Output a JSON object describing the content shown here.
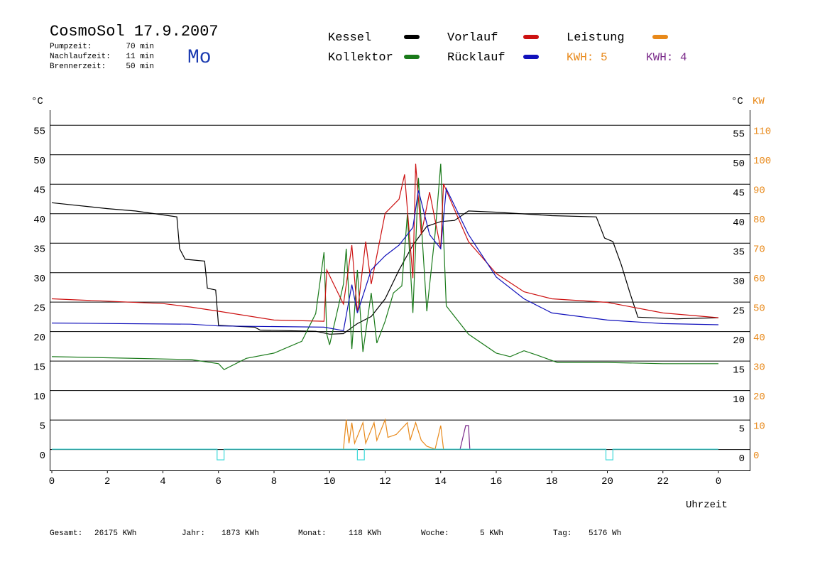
{
  "chart_data": {
    "type": "line",
    "title": "CosmoSol 17.9.2007",
    "day": "Mo",
    "info": [
      [
        "Pumpzeit:",
        "70 min"
      ],
      [
        "Nachlaufzeit:",
        "11 min"
      ],
      [
        "Brennerzeit:",
        "50 min"
      ]
    ],
    "y_label": "°C",
    "y2_label": "KW",
    "x_label": "Uhrzeit",
    "kwh_labels": [
      {
        "text": "KWH: 5",
        "color": "#e8891a"
      },
      {
        "text": "KWH: 4",
        "color": "#7a2a8a"
      }
    ],
    "footer": [
      [
        "Gesamt:",
        "26175 KWh"
      ],
      [
        "Jahr:",
        "1873 KWh"
      ],
      [
        "Monat:",
        "118 KWh"
      ],
      [
        "Woche:",
        "5 KWh"
      ],
      [
        "Tag:",
        "5176 Wh"
      ]
    ],
    "xlim": [
      0,
      24
    ],
    "xticks": [
      0,
      2,
      4,
      6,
      8,
      10,
      12,
      14,
      16,
      18,
      20,
      22,
      {
        "value": 24,
        "label": "0"
      }
    ],
    "ylim": [
      -3.6,
      57.5
    ],
    "yticks": [
      0,
      5,
      10,
      15,
      20,
      25,
      30,
      35,
      40,
      45,
      50,
      55
    ],
    "y2lim": [
      -7.2,
      115
    ],
    "y2ticks": [
      0,
      10,
      20,
      30,
      40,
      50,
      60,
      70,
      80,
      90,
      100,
      110
    ],
    "grid": true,
    "series": [
      {
        "name": "Kessel",
        "color": "#000000",
        "x": [
          0,
          2,
          3,
          4.5,
          4.6,
          4.8,
          5.5,
          5.6,
          5.9,
          6.0,
          7.3,
          7.5,
          9.5,
          10,
          10.5,
          11,
          11.5,
          12,
          12.5,
          13,
          13.5,
          14,
          14.5,
          15,
          16,
          18,
          19.6,
          19.9,
          20.2,
          20.5,
          20.8,
          21.1,
          22.5,
          24
        ],
        "values": [
          41.8,
          40.8,
          40.4,
          39.4,
          34,
          32.2,
          31.9,
          27.3,
          27,
          21,
          20.7,
          20.2,
          20,
          19.5,
          19.6,
          21.3,
          22.5,
          25.5,
          30.4,
          34.6,
          37.8,
          38.6,
          38.8,
          40.4,
          40.2,
          39.6,
          39.4,
          35.8,
          35.2,
          31.3,
          26.7,
          22.4,
          22.1,
          22.3
        ]
      },
      {
        "name": "Kollektor",
        "color": "#1a7a1a",
        "x": [
          0,
          2,
          5,
          6,
          6.2,
          7,
          8,
          9,
          9.5,
          9.8,
          9.9,
          10,
          10.5,
          10.6,
          10.8,
          11,
          11.2,
          11.5,
          11.7,
          12,
          12.3,
          12.6,
          12.8,
          13,
          13.2,
          13.5,
          13.8,
          14,
          14.2,
          15,
          16,
          16.5,
          17,
          17.5,
          18.2,
          20,
          22,
          24
        ],
        "values": [
          15.7,
          15.5,
          15.2,
          14.5,
          13.5,
          15.4,
          16.3,
          18.3,
          23,
          33.4,
          19.5,
          17.7,
          28,
          34,
          17,
          30.4,
          16.5,
          26.5,
          18,
          21.7,
          26.5,
          27.7,
          39.8,
          23.1,
          46,
          23.4,
          36.6,
          48.4,
          24.3,
          19.5,
          16.3,
          15.7,
          16.7,
          15.9,
          14.7,
          14.7,
          14.5,
          14.5
        ]
      },
      {
        "name": "Vorlauf",
        "color": "#cc1111",
        "x": [
          0,
          4,
          5,
          6,
          8,
          9.8,
          9.9,
          10.5,
          10.8,
          11,
          11.3,
          11.5,
          12,
          12.5,
          12.7,
          13,
          13.1,
          13.3,
          13.6,
          14,
          14.1,
          14.5,
          15,
          16,
          17,
          18,
          20,
          22,
          24
        ],
        "values": [
          25.5,
          24.7,
          24.1,
          23.4,
          21.9,
          21.7,
          30.4,
          24.6,
          34.6,
          23.1,
          35.2,
          28,
          40,
          42.4,
          46.6,
          29,
          48.4,
          36.4,
          43.6,
          34,
          45,
          40.6,
          35.2,
          29.8,
          26.7,
          25.5,
          24.9,
          23.1,
          22.3
        ]
      },
      {
        "name": "Rücklauf",
        "color": "#1111bb",
        "x": [
          0,
          5,
          6,
          9.8,
          10.5,
          10.8,
          11,
          11.5,
          12,
          12.5,
          13,
          13.2,
          13.6,
          14,
          14.2,
          15,
          16,
          17,
          18,
          20,
          22,
          24
        ],
        "values": [
          21.4,
          21.2,
          20.9,
          20.7,
          20.1,
          27.9,
          23.1,
          30.4,
          32.8,
          34.6,
          37.6,
          43.9,
          36.4,
          34,
          44.2,
          36.4,
          29.2,
          25.5,
          23.1,
          21.9,
          21.3,
          21.1
        ]
      },
      {
        "name": "Leistung",
        "color": "#e8891a",
        "axis": "y2",
        "x": [
          10.5,
          10.6,
          10.7,
          10.8,
          10.9,
          11.2,
          11.3,
          11.6,
          11.7,
          12.0,
          12.1,
          12.4,
          12.8,
          12.9,
          13.1,
          13.3,
          13.5,
          13.8,
          14.0,
          14.1
        ],
        "values": [
          0,
          10,
          2,
          9,
          2,
          9,
          2,
          9,
          3,
          10,
          4,
          5,
          9,
          3,
          9,
          3,
          1,
          0,
          8,
          0
        ]
      },
      {
        "color": "#7a2a8a",
        "axis": "y2",
        "x": [
          14.7,
          14.9,
          15.0,
          15.05
        ],
        "values": [
          0,
          8,
          8,
          0
        ]
      },
      {
        "color": "#3cd8d8",
        "x": [
          0,
          5.95,
          5.95,
          6.2,
          6.2,
          11.0,
          11.0,
          11.25,
          11.25,
          19.95,
          19.95,
          20.2,
          20.2,
          24
        ],
        "values": [
          0,
          0,
          -1.8,
          -1.8,
          0,
          0,
          -1.8,
          -1.8,
          0,
          0,
          -1.8,
          -1.8,
          0,
          0
        ]
      }
    ]
  }
}
